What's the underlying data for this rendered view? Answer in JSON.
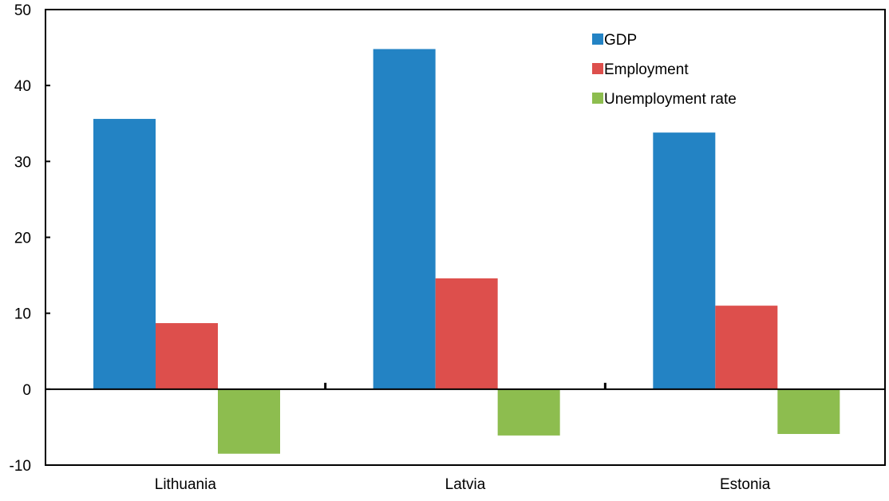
{
  "chart_data": {
    "type": "bar",
    "title": "",
    "xlabel": "",
    "ylabel": "",
    "categories": [
      "Lithuania",
      "Latvia",
      "Estonia"
    ],
    "series": [
      {
        "name": "GDP",
        "values": [
          35.6,
          44.8,
          33.8
        ],
        "color": "#2383c4"
      },
      {
        "name": "Employment",
        "values": [
          8.7,
          14.6,
          11.0
        ],
        "color": "#dd4f4c"
      },
      {
        "name": "Unemployment rate",
        "values": [
          -8.5,
          -6.1,
          -5.9
        ],
        "color": "#8dbd4f"
      }
    ],
    "ylim": [
      -10,
      50
    ],
    "yticks": [
      50,
      40,
      30,
      20,
      10,
      0,
      -10
    ],
    "ytick_labels": [
      "50",
      "40",
      "30",
      "20",
      "10",
      "0",
      "-10"
    ],
    "grid": false,
    "legend_position": "top-right"
  }
}
